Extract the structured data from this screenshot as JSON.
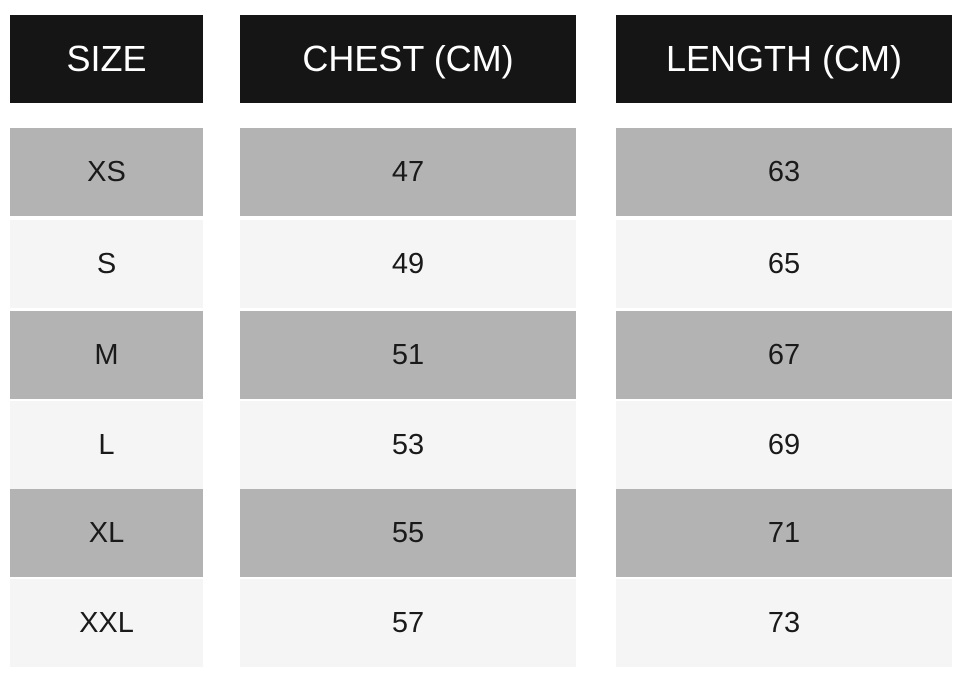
{
  "table": {
    "headers": [
      "SIZE",
      "CHEST (CM)",
      "LENGTH (CM)"
    ],
    "rows": [
      [
        "XS",
        47,
        63
      ],
      [
        "S",
        49,
        65
      ],
      [
        "M",
        51,
        67
      ],
      [
        "L",
        53,
        69
      ],
      [
        "XL",
        55,
        71
      ],
      [
        "XXL",
        57,
        73
      ]
    ]
  }
}
